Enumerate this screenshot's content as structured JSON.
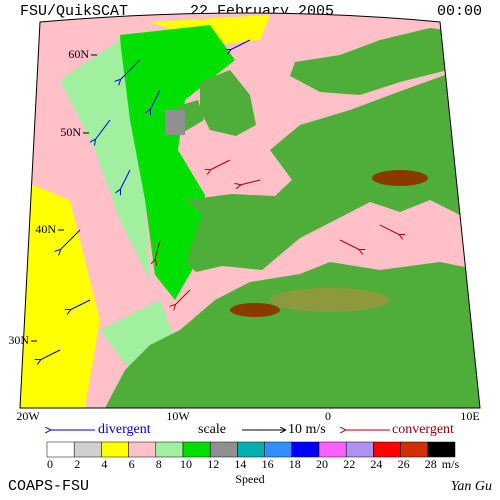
{
  "header": {
    "source": "FSU/QuikSCAT",
    "date": "22 February 2005",
    "time": "00:00"
  },
  "map": {
    "lat_labels": [
      "60N",
      "50N",
      "40N",
      "30N"
    ],
    "lon_labels": [
      "20W",
      "10W",
      "0",
      "10E"
    ]
  },
  "legend": {
    "divergent": "divergent",
    "scale": "scale",
    "scale_value": "10 m/s",
    "convergent": "convergent"
  },
  "colorbar": {
    "ticks": [
      0,
      2,
      4,
      6,
      8,
      10,
      12,
      14,
      16,
      18,
      20,
      22,
      24,
      26,
      28
    ],
    "colors": [
      "#ffffff",
      "#d0d0d0",
      "#ffff00",
      "#ffc0c8",
      "#a0f0a0",
      "#00e000",
      "#909090",
      "#00b0b0",
      "#3090ff",
      "#0000ff",
      "#ff60ff",
      "#b090f0",
      "#ff0000",
      "#d03000",
      "#000000"
    ],
    "unit": "m/s",
    "title": "Speed"
  },
  "footer": {
    "credit": "COAPS-FSU",
    "author": "Yan Gu"
  }
}
